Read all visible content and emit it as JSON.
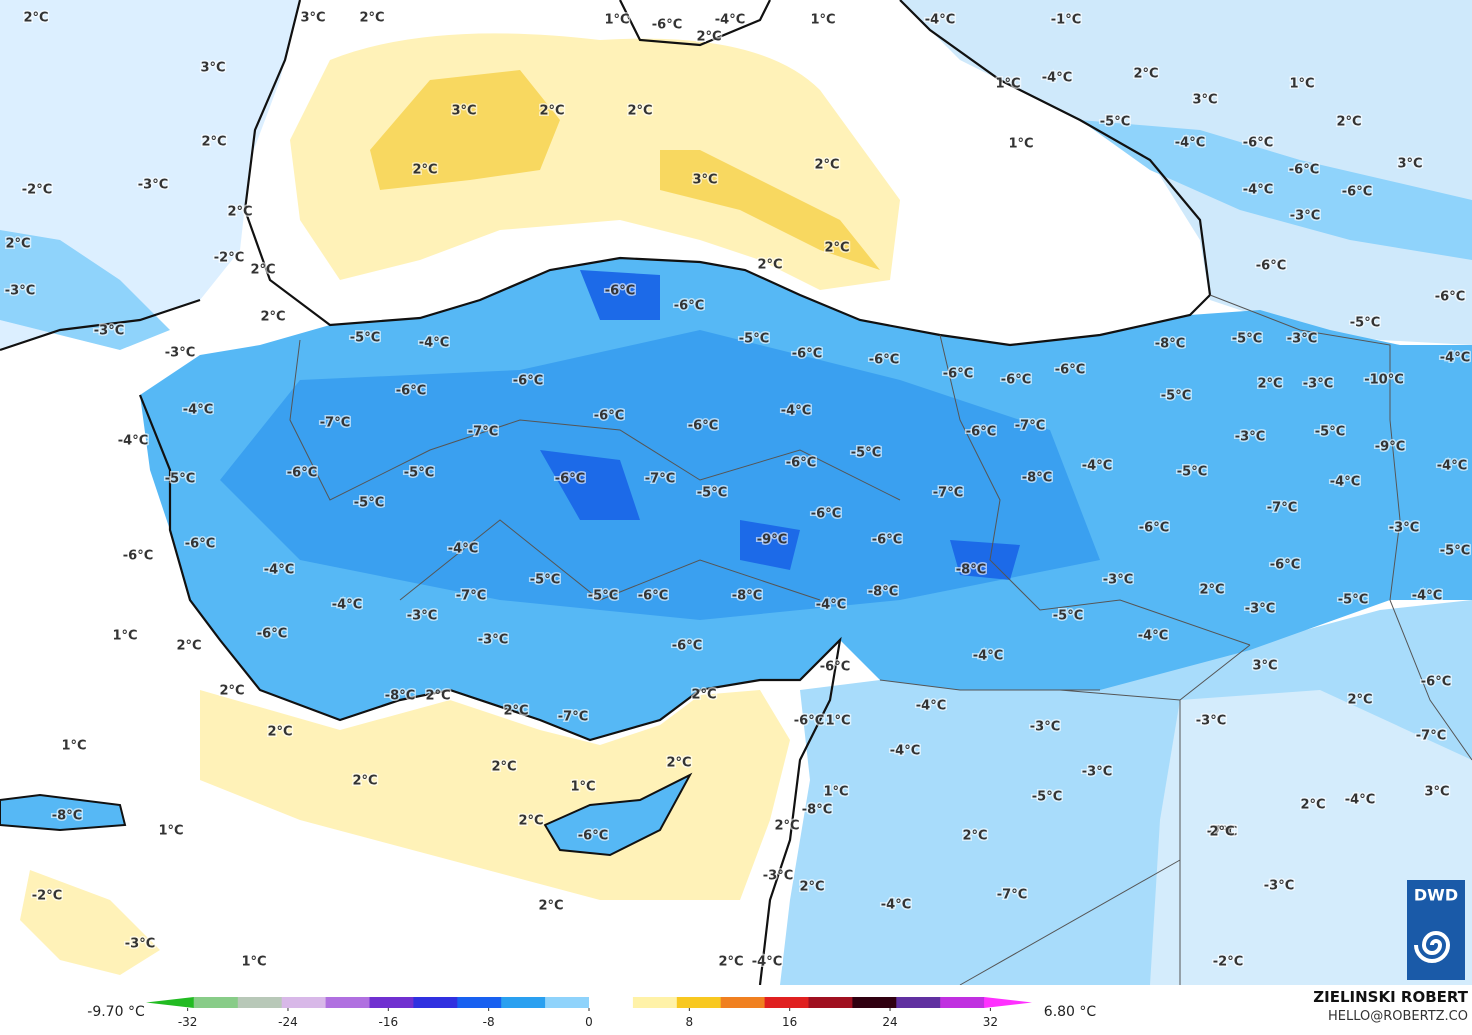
{
  "map": {
    "labels": [
      "2°C",
      "3°C",
      "2°C",
      "1°C",
      "-6°C",
      "-4°C",
      "2°C",
      "1°C",
      "-4°C",
      "-1°C",
      "3°C",
      "1°C",
      "-4°C",
      "2°C",
      "1°C",
      "3°C",
      "3°C",
      "2°C",
      "2°C",
      "-5°C",
      "2°C",
      "2°C",
      "1°C",
      "-4°C",
      "-6°C",
      "2°C",
      "2°C",
      "-6°C",
      "3°C",
      "3°C",
      "-2°C",
      "-3°C",
      "-4°C",
      "-6°C",
      "2°C",
      "-3°C",
      "2°C",
      "2°C",
      "-2°C",
      "2°C",
      "2°C",
      "-6°C",
      "-3°C",
      "-6°C",
      "-6°C",
      "-6°C",
      "2°C",
      "-5°C",
      "-3°C",
      "-5°C",
      "-4°C",
      "-5°C",
      "-5°C",
      "-3°C",
      "-8°C",
      "-3°C",
      "-6°C",
      "-6°C",
      "-4°C",
      "-6°C",
      "-6°C",
      "-6°C",
      "-6°C",
      "-6°C",
      "-10°C",
      "2°C",
      "-3°C",
      "-5°C",
      "-4°C",
      "-6°C",
      "-4°C",
      "-7°C",
      "-7°C",
      "-6°C",
      "-6°C",
      "-7°C",
      "-3°C",
      "-5°C",
      "-4°C",
      "-9°C",
      "-5°C",
      "-6°C",
      "-4°C",
      "-4°C",
      "-6°C",
      "-5°C",
      "-6°C",
      "-7°C",
      "-5°C",
      "-8°C",
      "-5°C",
      "-4°C",
      "-5°C",
      "-7°C",
      "-7°C",
      "-5°C",
      "-6°C",
      "-3°C",
      "-6°C",
      "-9°C",
      "-6°C",
      "-6°C",
      "-5°C",
      "-4°C",
      "-6°C",
      "-6°C",
      "-4°C",
      "-8°C",
      "-5°C",
      "-3°C",
      "-8°C",
      "-7°C",
      "-5°C",
      "-6°C",
      "-8°C",
      "2°C",
      "-3°C",
      "-5°C",
      "-4°C",
      "-4°C",
      "-4°C",
      "-3°C",
      "-5°C",
      "1°C",
      "-6°C",
      "-3°C",
      "-4°C",
      "2°C",
      "-6°C",
      "-4°C",
      "-6°C",
      "3°C",
      "-6°C",
      "2°C",
      "2°C",
      "-8°C",
      "2°C",
      "2°C",
      "2°C",
      "-4°C",
      "-7°C",
      "-6°C",
      "1°C",
      "-3°C",
      "-3°C",
      "2°C",
      "-7°C",
      "1°C",
      "-4°C",
      "2°C",
      "2°C",
      "-3°C",
      "2°C",
      "1°C",
      "1°C",
      "3°C",
      "-5°C",
      "2°C",
      "-4°C",
      "-8°C",
      "-8°C",
      "1°C",
      "2°C",
      "-6°C",
      "2°C",
      "-7°C",
      "-3°C",
      "-2°C",
      "2°C",
      "-7°C",
      "-3°C",
      "2°C",
      "2°C",
      "-4°C",
      "2°C",
      "-3°C",
      "1°C",
      "2°C",
      "-4°C",
      "-2°C"
    ],
    "colorbar": {
      "min_label": "-9.70 °C",
      "max_label": "6.80 °C",
      "lim": [
        -35,
        35
      ],
      "ticks": [
        -32,
        -24,
        -16,
        -8,
        0,
        8,
        16,
        24,
        32
      ],
      "colors": [
        "#22bb22",
        "#88cc88",
        "#b8c8b8",
        "#d8b8e8",
        "#b070e0",
        "#7030d0",
        "#3030e0",
        "#1860f0",
        "#2aa0f0",
        "#8fd3fb",
        "#ffffff",
        "#fff2a8",
        "#f8c820",
        "#f08020",
        "#e02020",
        "#a01020",
        "#300010",
        "#6030a0",
        "#c030e0",
        "#ff30ff"
      ]
    },
    "author": "ZIELINSKI ROBERT",
    "email": "HELLO@ROBERTZ.CO",
    "logo": "DWD"
  }
}
